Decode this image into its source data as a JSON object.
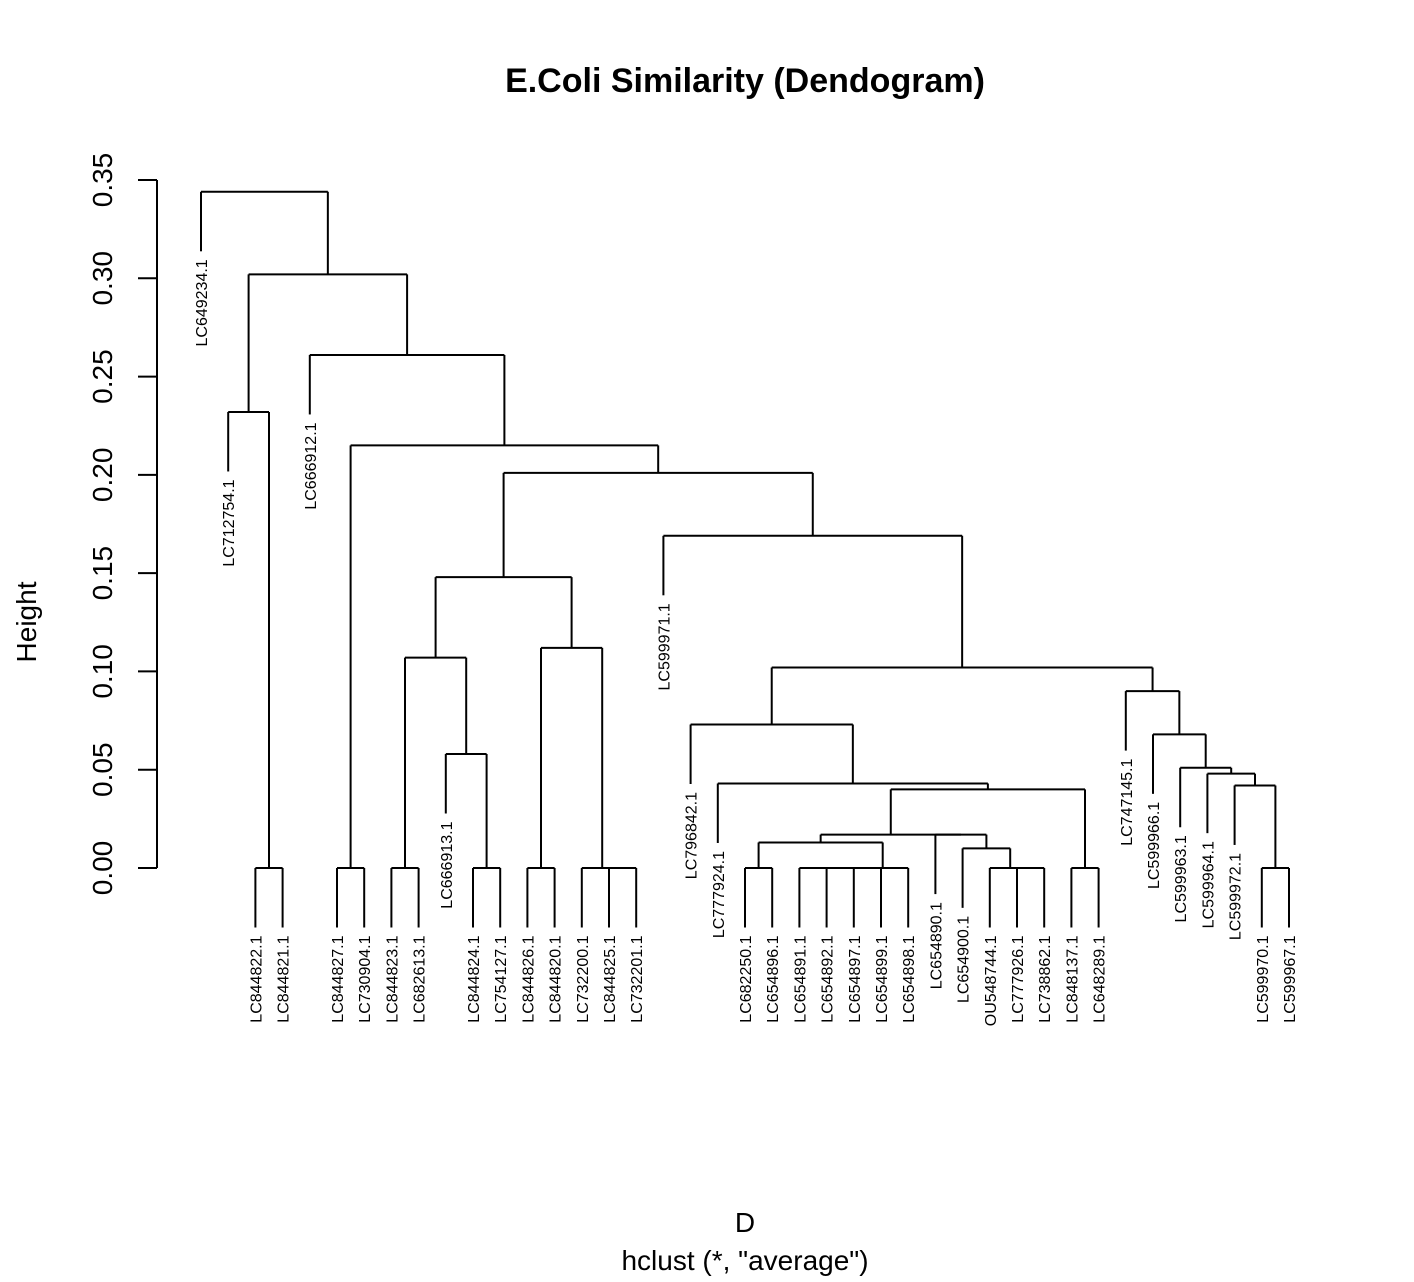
{
  "chart_data": {
    "type": "dendrogram",
    "title": "E.Coli Similarity (Dendogram)",
    "ylabel": "Height",
    "xlabel": "D",
    "subtitle": "hclust (*, \"average\")",
    "ylim": [
      0,
      0.35
    ],
    "y_ticks": [
      "0.00",
      "0.05",
      "0.10",
      "0.15",
      "0.20",
      "0.25",
      "0.30",
      "0.35"
    ],
    "leaves": [
      {
        "label": "LC649234.1",
        "height": 0.344
      },
      {
        "label": "LC712754.1",
        "height": 0.232
      },
      {
        "label": "LC844822.1",
        "height": 0.0
      },
      {
        "label": "LC844821.1",
        "height": 0.0
      },
      {
        "label": "LC666912.1",
        "height": 0.261
      },
      {
        "label": "LC844827.1",
        "height": 0.0
      },
      {
        "label": "LC730904.1",
        "height": 0.0
      },
      {
        "label": "LC844823.1",
        "height": 0.0
      },
      {
        "label": "LC682613.1",
        "height": 0.0
      },
      {
        "label": "LC666913.1",
        "height": 0.058
      },
      {
        "label": "LC844824.1",
        "height": 0.0
      },
      {
        "label": "LC754127.1",
        "height": 0.0
      },
      {
        "label": "LC844826.1",
        "height": 0.0
      },
      {
        "label": "LC844820.1",
        "height": 0.0
      },
      {
        "label": "LC732200.1",
        "height": 0.0
      },
      {
        "label": "LC844825.1",
        "height": 0.0
      },
      {
        "label": "LC732201.1",
        "height": 0.0
      },
      {
        "label": "LC599971.1",
        "height": 0.169
      },
      {
        "label": "LC796842.1",
        "height": 0.073
      },
      {
        "label": "LC777924.1",
        "height": 0.043
      },
      {
        "label": "LC682250.1",
        "height": 0.0
      },
      {
        "label": "LC654896.1",
        "height": 0.0
      },
      {
        "label": "LC654891.1",
        "height": 0.0
      },
      {
        "label": "LC654892.1",
        "height": 0.0
      },
      {
        "label": "LC654897.1",
        "height": 0.0
      },
      {
        "label": "LC654899.1",
        "height": 0.0
      },
      {
        "label": "LC654898.1",
        "height": 0.0
      },
      {
        "label": "LC654890.1",
        "height": 0.017
      },
      {
        "label": "LC654900.1",
        "height": 0.01
      },
      {
        "label": "OU548744.1",
        "height": 0.0
      },
      {
        "label": "LC777926.1",
        "height": 0.0
      },
      {
        "label": "LC738862.1",
        "height": 0.0
      },
      {
        "label": "LC848137.1",
        "height": 0.0
      },
      {
        "label": "LC648289.1",
        "height": 0.0
      },
      {
        "label": "LC747145.1",
        "height": 0.09
      },
      {
        "label": "LC599966.1",
        "height": 0.068
      },
      {
        "label": "LC599963.1",
        "height": 0.051
      },
      {
        "label": "LC599964.1",
        "height": 0.048
      },
      {
        "label": "LC599972.1",
        "height": 0.042
      },
      {
        "label": "LC599970.1",
        "height": 0.0
      },
      {
        "label": "LC599967.1",
        "height": 0.0
      }
    ],
    "merges": [
      [
        -3,
        -4,
        0.0
      ],
      [
        -6,
        -7,
        0.0
      ],
      [
        -8,
        -9,
        0.0
      ],
      [
        -11,
        -12,
        0.0
      ],
      [
        -13,
        -14,
        0.0
      ],
      [
        -16,
        -17,
        0.0
      ],
      [
        -15,
        6,
        0.0
      ],
      [
        -21,
        -22,
        0.0
      ],
      [
        -23,
        -24,
        0.0
      ],
      [
        9,
        -25,
        0.0
      ],
      [
        10,
        -26,
        0.0
      ],
      [
        11,
        -27,
        0.0
      ],
      [
        -31,
        -32,
        0.0
      ],
      [
        -30,
        13,
        0.0
      ],
      [
        -33,
        -34,
        0.0
      ],
      [
        -40,
        -41,
        0.0
      ],
      [
        -2,
        1,
        0.232
      ],
      [
        -10,
        4,
        0.058
      ],
      [
        3,
        18,
        0.107
      ],
      [
        5,
        7,
        0.112
      ],
      [
        19,
        20,
        0.148
      ],
      [
        8,
        12,
        0.013
      ],
      [
        -29,
        14,
        0.01
      ],
      [
        -28,
        23,
        0.017
      ],
      [
        22,
        24,
        0.017
      ],
      [
        25,
        15,
        0.04
      ],
      [
        -20,
        26,
        0.043
      ],
      [
        -19,
        27,
        0.073
      ],
      [
        -39,
        16,
        0.042
      ],
      [
        -38,
        29,
        0.048
      ],
      [
        -37,
        30,
        0.051
      ],
      [
        -36,
        31,
        0.068
      ],
      [
        -35,
        32,
        0.09
      ],
      [
        28,
        33,
        0.102
      ],
      [
        -18,
        34,
        0.169
      ],
      [
        21,
        35,
        0.201
      ],
      [
        2,
        36,
        0.215
      ],
      [
        -5,
        37,
        0.261
      ],
      [
        17,
        38,
        0.302
      ],
      [
        -1,
        39,
        0.344
      ]
    ],
    "grid": false,
    "legend": "none"
  }
}
